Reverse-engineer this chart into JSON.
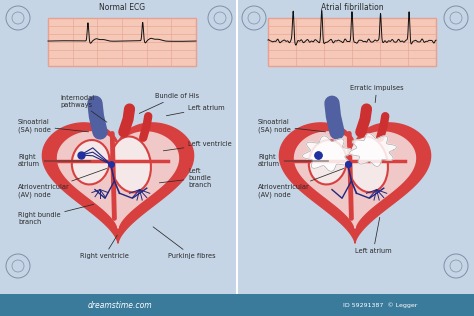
{
  "bg_color": "#c5d5e5",
  "left_title": "Normal ECG",
  "right_title": "Atrial fibrillation",
  "ecg_bg": "#f5c8b8",
  "ecg_grid": "#e8a090",
  "heart_red": "#d84040",
  "heart_pink": "#f0c8c8",
  "heart_inner": "#f5e8e8",
  "vessel_blue": "#5060a0",
  "vessel_red": "#cc3030",
  "conduct_col": "#202880",
  "node_col": "#2030a0",
  "label_col": "#2a2a2a",
  "bottom_bar": "#3a7a9a",
  "bottom_text": "#ffffff",
  "dreamstime_text": "dreamstime.com",
  "id_text": "ID 59291387  © Legger",
  "wm_col": "#8090a8"
}
